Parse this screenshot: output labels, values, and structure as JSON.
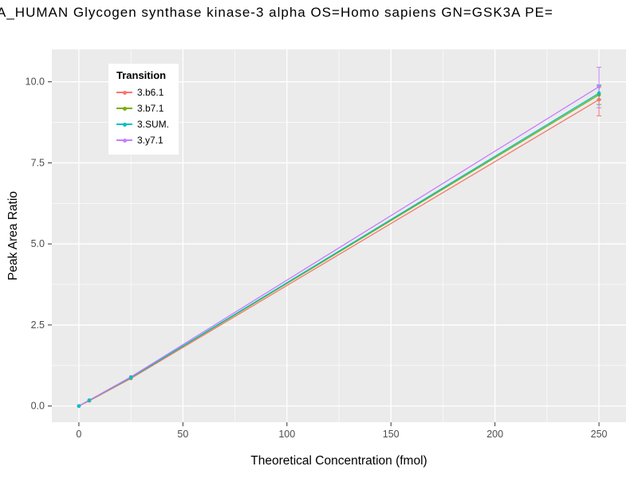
{
  "chart_data": {
    "type": "line",
    "title": "A_HUMAN Glycogen synthase kinase-3 alpha OS=Homo sapiens GN=GSK3A PE=",
    "xlabel": "Theoretical Concentration (fmol)",
    "ylabel": "Peak Area Ratio",
    "xlim": [
      -13,
      263
    ],
    "ylim": [
      -0.5,
      11.0
    ],
    "x_ticks": [
      0,
      50,
      100,
      150,
      200,
      250
    ],
    "x_tick_labels": [
      "0",
      "50",
      "100",
      "150",
      "200",
      "250"
    ],
    "y_ticks": [
      0.0,
      2.5,
      5.0,
      7.5,
      10.0
    ],
    "y_tick_labels": [
      "0.0",
      "2.5",
      "5.0",
      "7.5",
      "10.0"
    ],
    "grid": "major-and-minor",
    "panel_background": "#EBEBEB",
    "gridline_color": "#FFFFFF",
    "tick_label_color": "#4D4D4D",
    "legend": {
      "title": "Transition",
      "position": "top-left-inside"
    },
    "x": [
      0,
      5,
      25,
      250
    ],
    "series": [
      {
        "name": "3.b6.1",
        "color": "#F8766D",
        "values": [
          0.0,
          0.16,
          0.85,
          9.45
        ],
        "errorbar": {
          "x": 250,
          "ymin": 8.95,
          "ymax": 9.9
        }
      },
      {
        "name": "3.b7.1",
        "color": "#7CAE00",
        "values": [
          0.0,
          0.17,
          0.87,
          9.6
        ],
        "errorbar": {
          "x": 250,
          "ymin": 9.3,
          "ymax": 9.85
        }
      },
      {
        "name": "3.SUM.",
        "color": "#00BFC4",
        "values": [
          0.0,
          0.18,
          0.88,
          9.65
        ],
        "errorbar": {
          "x": 250,
          "ymin": 9.45,
          "ymax": 9.9
        }
      },
      {
        "name": "3.y7.1",
        "color": "#C77CFF",
        "values": [
          0.0,
          0.18,
          0.9,
          9.85
        ],
        "errorbar": {
          "x": 250,
          "ymin": 9.2,
          "ymax": 10.45
        }
      }
    ]
  }
}
